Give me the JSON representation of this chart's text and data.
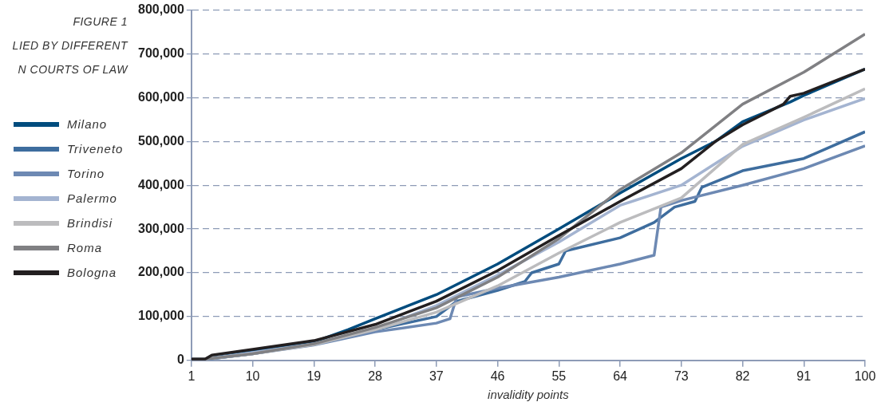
{
  "chart_data": {
    "type": "line",
    "title": "FIGURE 1",
    "subtitle": "LIED BY DIFFERENT\nN COURTS OF LAW",
    "xlabel": "invalidity points",
    "xlim": [
      1,
      100
    ],
    "xticks": [
      1,
      10,
      19,
      28,
      37,
      46,
      55,
      64,
      73,
      82,
      91,
      100
    ],
    "ylim": [
      0,
      800000
    ],
    "yticks": [
      {
        "value": 0,
        "label": "0"
      },
      {
        "value": 100000,
        "label": "100,000"
      },
      {
        "value": 200000,
        "label": "200,000"
      },
      {
        "value": 300000,
        "label": "300,000"
      },
      {
        "value": 400000,
        "label": "400,000"
      },
      {
        "value": 500000,
        "label": "500,000"
      },
      {
        "value": 600000,
        "label": "600,000"
      },
      {
        "value": 700000,
        "label": "700,000"
      },
      {
        "value": 800000,
        "label": "800,000"
      }
    ],
    "grid": "y",
    "legend": "left",
    "marker": "none",
    "line_style": "solid",
    "series": [
      {
        "name": "Milano",
        "color": "#004c7e",
        "x": [
          1,
          3,
          10,
          19,
          24,
          28,
          37,
          46,
          55,
          64,
          73,
          78,
          82,
          89,
          91,
          100
        ],
        "values": [
          3000,
          3000,
          20000,
          42000,
          70000,
          95000,
          150000,
          220000,
          300000,
          382000,
          461000,
          500000,
          545000,
          590000,
          605000,
          665000
        ]
      },
      {
        "name": "Triveneto",
        "color": "#3e6d9e",
        "x": [
          1,
          3,
          10,
          19,
          28,
          37,
          40,
          46,
          50,
          51,
          55,
          56,
          64,
          69,
          72,
          75,
          76,
          82,
          91,
          100
        ],
        "values": [
          2000,
          2000,
          15000,
          38000,
          70000,
          100000,
          135000,
          160000,
          180000,
          200000,
          220000,
          250000,
          280000,
          315000,
          350000,
          363000,
          395000,
          433000,
          461000,
          522000
        ]
      },
      {
        "name": "Torino",
        "color": "#6d89b3",
        "x": [
          1,
          3,
          10,
          19,
          28,
          37,
          39,
          40,
          46,
          55,
          64,
          69,
          70,
          73,
          82,
          91,
          100
        ],
        "values": [
          2000,
          2000,
          15000,
          35000,
          65000,
          85000,
          95000,
          145000,
          165000,
          190000,
          220000,
          240000,
          350000,
          365000,
          400000,
          438000,
          490000
        ]
      },
      {
        "name": "Palermo",
        "color": "#a4b4d1",
        "x": [
          1,
          3,
          10,
          19,
          28,
          37,
          46,
          55,
          64,
          73,
          82,
          91,
          100
        ],
        "values": [
          3000,
          3000,
          18000,
          38000,
          72000,
          125000,
          195000,
          270000,
          354000,
          400000,
          489000,
          549000,
          598000
        ]
      },
      {
        "name": "Brindisi",
        "color": "#bcbcbe",
        "x": [
          1,
          3,
          10,
          19,
          28,
          37,
          46,
          55,
          64,
          73,
          82,
          91,
          100
        ],
        "values": [
          3000,
          3000,
          15000,
          36000,
          70000,
          110000,
          170000,
          245000,
          315000,
          371000,
          493000,
          555000,
          620000
        ]
      },
      {
        "name": "Roma",
        "color": "#808083",
        "x": [
          1,
          3,
          10,
          19,
          28,
          37,
          46,
          55,
          64,
          73,
          82,
          91,
          100
        ],
        "values": [
          3000,
          3000,
          15000,
          38000,
          75000,
          120000,
          190000,
          278000,
          390000,
          474000,
          585000,
          658000,
          745000
        ]
      },
      {
        "name": "Bologna",
        "color": "#231f20",
        "x": [
          1,
          3,
          4,
          10,
          19,
          28,
          37,
          46,
          55,
          64,
          73,
          78,
          82,
          88,
          89,
          91,
          100
        ],
        "values": [
          3000,
          3000,
          12000,
          25000,
          45000,
          82000,
          135000,
          205000,
          285000,
          363000,
          438000,
          500000,
          538000,
          585000,
          603000,
          610000,
          665000
        ]
      }
    ]
  }
}
